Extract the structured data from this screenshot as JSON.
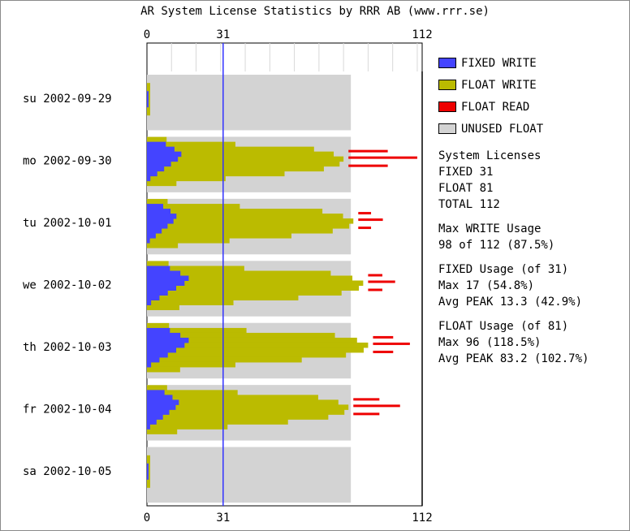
{
  "title": "AR System License Statistics by RRR AB (www.rrr.se)",
  "legend": [
    {
      "label": "FIXED WRITE",
      "color": "#4444ff"
    },
    {
      "label": "FLOAT WRITE",
      "color": "#bbbb00"
    },
    {
      "label": "FLOAT READ",
      "color": "#ee0000"
    },
    {
      "label": "UNUSED FLOAT",
      "color": "#d3d3d3"
    }
  ],
  "stats": {
    "licenses": {
      "heading": "System Licenses",
      "lines": [
        "FIXED 31",
        "FLOAT 81",
        "TOTAL 112"
      ]
    },
    "max_write": {
      "heading": "Max WRITE Usage",
      "lines": [
        "98 of 112 (87.5%)"
      ]
    },
    "fixed_usage": {
      "heading": "FIXED Usage (of 31)",
      "lines": [
        "Max 17 (54.8%)",
        "Avg PEAK 13.3 (42.9%)"
      ]
    },
    "float_usage": {
      "heading": "FLOAT Usage (of 81)",
      "lines": [
        "Max 96 (118.5%)",
        "Avg PEAK 83.2 (102.7%)"
      ]
    }
  },
  "chart_data": {
    "type": "bar",
    "orientation": "horizontal",
    "title": "AR System License Statistics by RRR AB (www.rrr.se)",
    "x_ticks": [
      "0",
      "31",
      "112"
    ],
    "xlim": [
      0,
      112
    ],
    "reference_line": 31,
    "categories": [
      "su 2002-09-29",
      "mo 2002-09-30",
      "tu 2002-10-01",
      "we 2002-10-02",
      "th 2002-10-03",
      "fr 2002-10-04",
      "sa 2002-10-05"
    ],
    "series": [
      {
        "name": "FIXED WRITE",
        "peak_values": [
          1,
          14,
          12,
          17,
          17,
          13,
          1
        ]
      },
      {
        "name": "FLOAT WRITE",
        "peak_values": [
          1,
          80,
          84,
          88,
          90,
          82,
          1
        ]
      },
      {
        "name": "FLOAT READ",
        "peak_values": [
          0,
          110,
          96,
          101,
          107,
          103,
          0
        ]
      },
      {
        "name": "UNUSED FLOAT",
        "peak_values": [
          81,
          81,
          81,
          81,
          81,
          81,
          81
        ]
      }
    ],
    "totals": {
      "fixed": 31,
      "float": 81,
      "total": 112
    },
    "grid": true
  }
}
